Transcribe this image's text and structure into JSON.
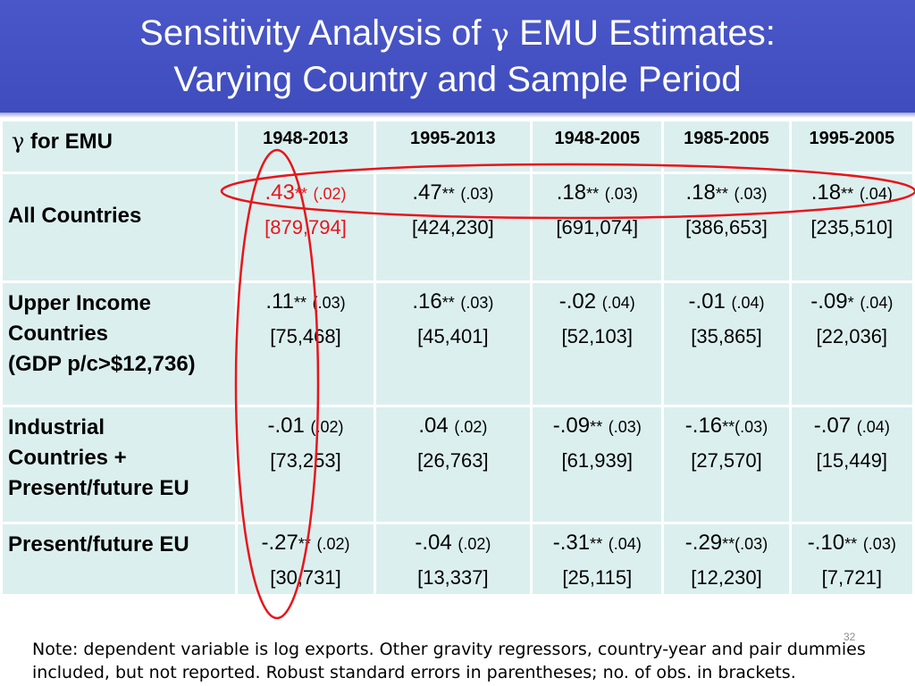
{
  "title": {
    "line1_prefix": "Sensitivity Analysis of ",
    "gamma": "γ",
    "line1_suffix": " EMU Estimates:",
    "line2": "Varying Country and Sample Period"
  },
  "table": {
    "corner_gamma": "γ",
    "corner_label": " for EMU",
    "columns": [
      "1948-2013",
      "1995-2013",
      "1948-2005",
      "1985-2005",
      "1995-2005"
    ],
    "rows": [
      {
        "label": "All Countries",
        "cells": [
          {
            "coef": ".43",
            "stars": "**",
            "se": "(.02)",
            "obs": "[879,794]"
          },
          {
            "coef": ".47",
            "stars": "**",
            "se": "(.03)",
            "obs": "[424,230]"
          },
          {
            "coef": ".18",
            "stars": "**",
            "se": "(.03)",
            "obs": "[691,074]"
          },
          {
            "coef": ".18",
            "stars": "**",
            "se": "(.03)",
            "obs": "[386,653]"
          },
          {
            "coef": ".18",
            "stars": "**",
            "se": "(.04)",
            "obs": "[235,510]"
          }
        ]
      },
      {
        "label_lines": [
          "Upper Income",
          "Countries",
          "(GDP p/c>$12,736)"
        ],
        "cells": [
          {
            "coef": ".11",
            "stars": "**",
            "se": "(.03)",
            "obs": "[75,468]"
          },
          {
            "coef": ".16",
            "stars": "**",
            "se": "(.03)",
            "obs": "[45,401]"
          },
          {
            "coef": "-.02",
            "stars": "",
            "se": "(.04)",
            "obs": "[52,103]"
          },
          {
            "coef": "-.01",
            "stars": "",
            "se": "(.04)",
            "obs": "[35,865]"
          },
          {
            "coef": "-.09",
            "stars": "*",
            "se": "(.04)",
            "obs": "[22,036]"
          }
        ]
      },
      {
        "label_lines": [
          "Industrial",
          "Countries +",
          "Present/future EU"
        ],
        "cells": [
          {
            "coef": "-.01",
            "stars": "",
            "se": "(.02)",
            "obs": "[73,253]"
          },
          {
            "coef": ".04",
            "stars": "",
            "se": "(.02)",
            "obs": "[26,763]"
          },
          {
            "coef": "-.09",
            "stars": "**",
            "se": "(.03)",
            "obs": "[61,939]"
          },
          {
            "coef": "-.16",
            "stars": "**",
            "se": "(.03)",
            "obs": "[27,570]"
          },
          {
            "coef": "-.07",
            "stars": "",
            "se": "(.04)",
            "obs": "[15,449]"
          }
        ]
      },
      {
        "label": "Present/future EU",
        "cells": [
          {
            "coef": "-.27",
            "stars": "**",
            "se": "(.02)",
            "obs": "[30,731]"
          },
          {
            "coef": "-.04",
            "stars": "",
            "se": "(.02)",
            "obs": "[13,337]"
          },
          {
            "coef": "-.31",
            "stars": "**",
            "se": "(.04)",
            "obs": "[25,115]"
          },
          {
            "coef": "-.29",
            "stars": "**",
            "se": "(.03)",
            "obs": "[12,230]"
          },
          {
            "coef": "-.10",
            "stars": "**",
            "se": "(.03)",
            "obs": "[7,721]"
          }
        ]
      }
    ]
  },
  "highlight_color": "#e8141b",
  "page_number": "32",
  "note": "Note: dependent variable is log exports. Other gravity regressors, country-year and pair dummies included, but not reported. Robust standard errors in parentheses; no. of obs. in brackets."
}
